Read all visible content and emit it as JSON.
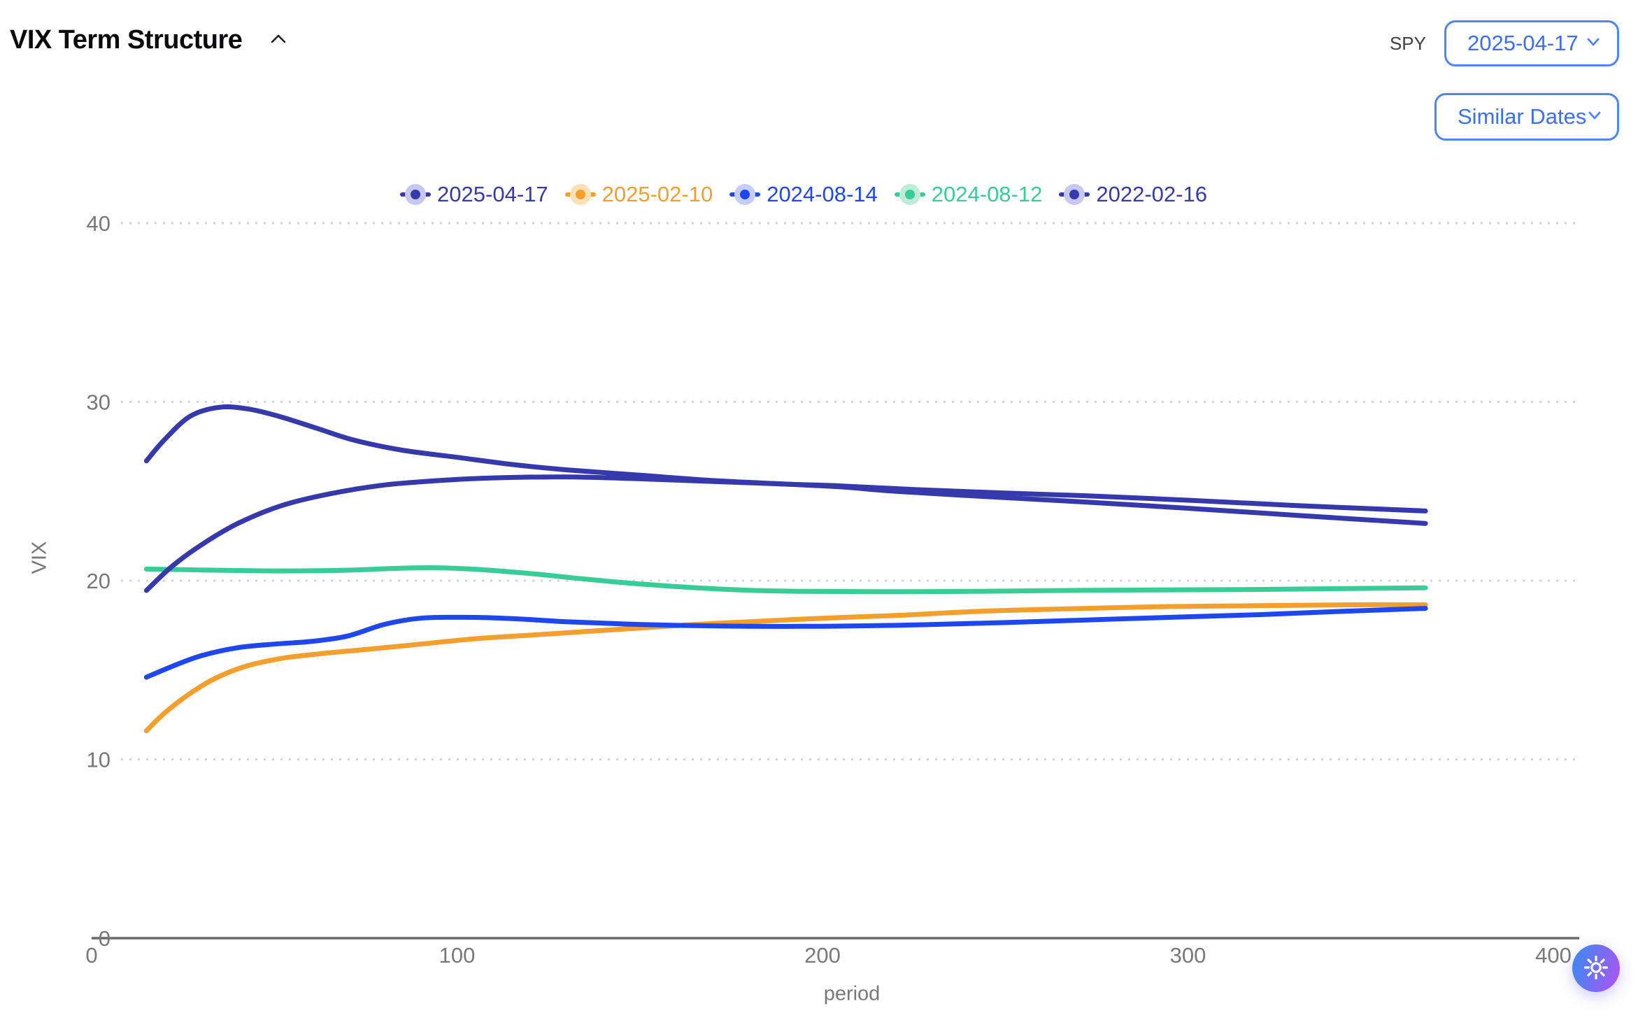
{
  "header": {
    "title": "VIX Term Structure",
    "symbol_label": "SPY",
    "date_select": {
      "value": "2025-04-17"
    },
    "similar_dates_button": {
      "label": "Similar Dates"
    }
  },
  "colors": {
    "navy": "#3639ab",
    "orange": "#f49e2c",
    "blue": "#1e47ee",
    "green": "#38cd96",
    "navy_halo": "#c6c8f0",
    "orange_halo": "#fbe2b6",
    "blue_halo": "#c5cdfb",
    "green_halo": "#c0ebd8",
    "grid": "#d3d3d3",
    "axis": "#6a6a6a",
    "tick_text": "#787878",
    "dropdown_border": "#4c86f4",
    "dropdown_text": "#3a6ff2",
    "fab_gradient_start": "#4187f2",
    "fab_gradient_end": "#a557f3"
  },
  "chart_data": {
    "type": "line",
    "title": "",
    "xlabel": "period",
    "ylabel": "VIX",
    "xlim": [
      0,
      400
    ],
    "ylim": [
      0,
      40
    ],
    "x_ticks": [
      0,
      100,
      200,
      300,
      400
    ],
    "y_ticks": [
      0,
      10,
      20,
      30,
      40
    ],
    "grid": "horizontal-dotted",
    "legend_position": "top-center",
    "series": [
      {
        "name": "2025-04-17",
        "color_key": "navy",
        "points": [
          [
            15,
            26.7
          ],
          [
            20,
            27.9
          ],
          [
            27,
            29.2
          ],
          [
            35,
            29.7
          ],
          [
            43,
            29.6
          ],
          [
            52,
            29.15
          ],
          [
            62,
            28.5
          ],
          [
            72,
            27.85
          ],
          [
            85,
            27.3
          ],
          [
            100,
            26.9
          ],
          [
            115,
            26.5
          ],
          [
            130,
            26.2
          ],
          [
            150,
            25.9
          ],
          [
            170,
            25.6
          ],
          [
            190,
            25.4
          ],
          [
            205,
            25.25
          ],
          [
            220,
            25.0
          ],
          [
            245,
            24.7
          ],
          [
            272,
            24.4
          ],
          [
            300,
            24.05
          ],
          [
            330,
            23.65
          ],
          [
            365,
            23.2
          ]
        ]
      },
      {
        "name": "2025-02-10",
        "color_key": "orange",
        "points": [
          [
            15,
            11.6
          ],
          [
            20,
            12.6
          ],
          [
            27,
            13.7
          ],
          [
            34,
            14.55
          ],
          [
            42,
            15.2
          ],
          [
            52,
            15.65
          ],
          [
            62,
            15.9
          ],
          [
            75,
            16.15
          ],
          [
            90,
            16.45
          ],
          [
            105,
            16.75
          ],
          [
            120,
            16.95
          ],
          [
            135,
            17.15
          ],
          [
            150,
            17.35
          ],
          [
            165,
            17.55
          ],
          [
            180,
            17.7
          ],
          [
            200,
            17.9
          ],
          [
            220,
            18.05
          ],
          [
            245,
            18.3
          ],
          [
            272,
            18.45
          ],
          [
            295,
            18.55
          ],
          [
            320,
            18.6
          ],
          [
            345,
            18.65
          ],
          [
            365,
            18.65
          ]
        ]
      },
      {
        "name": "2024-08-14",
        "color_key": "blue",
        "points": [
          [
            15,
            14.6
          ],
          [
            22,
            15.2
          ],
          [
            30,
            15.8
          ],
          [
            40,
            16.25
          ],
          [
            50,
            16.45
          ],
          [
            60,
            16.6
          ],
          [
            70,
            16.9
          ],
          [
            80,
            17.55
          ],
          [
            90,
            17.9
          ],
          [
            102,
            17.95
          ],
          [
            115,
            17.88
          ],
          [
            130,
            17.7
          ],
          [
            145,
            17.58
          ],
          [
            160,
            17.5
          ],
          [
            180,
            17.45
          ],
          [
            200,
            17.45
          ],
          [
            220,
            17.5
          ],
          [
            240,
            17.6
          ],
          [
            260,
            17.72
          ],
          [
            280,
            17.85
          ],
          [
            300,
            17.98
          ],
          [
            320,
            18.1
          ],
          [
            342,
            18.28
          ],
          [
            365,
            18.45
          ]
        ]
      },
      {
        "name": "2024-08-12",
        "color_key": "green",
        "points": [
          [
            15,
            20.65
          ],
          [
            30,
            20.6
          ],
          [
            45,
            20.55
          ],
          [
            60,
            20.55
          ],
          [
            72,
            20.6
          ],
          [
            85,
            20.7
          ],
          [
            95,
            20.72
          ],
          [
            108,
            20.6
          ],
          [
            120,
            20.4
          ],
          [
            132,
            20.15
          ],
          [
            145,
            19.9
          ],
          [
            158,
            19.7
          ],
          [
            170,
            19.55
          ],
          [
            182,
            19.45
          ],
          [
            195,
            19.4
          ],
          [
            215,
            19.38
          ],
          [
            240,
            19.4
          ],
          [
            265,
            19.45
          ],
          [
            290,
            19.48
          ],
          [
            315,
            19.5
          ],
          [
            340,
            19.55
          ],
          [
            365,
            19.6
          ]
        ]
      },
      {
        "name": "2022-02-16",
        "color_key": "navy",
        "points": [
          [
            15,
            19.45
          ],
          [
            22,
            20.8
          ],
          [
            30,
            22.0
          ],
          [
            40,
            23.2
          ],
          [
            52,
            24.2
          ],
          [
            65,
            24.85
          ],
          [
            80,
            25.35
          ],
          [
            95,
            25.6
          ],
          [
            110,
            25.75
          ],
          [
            130,
            25.8
          ],
          [
            150,
            25.7
          ],
          [
            170,
            25.55
          ],
          [
            190,
            25.4
          ],
          [
            205,
            25.3
          ],
          [
            225,
            25.1
          ],
          [
            250,
            24.9
          ],
          [
            272,
            24.75
          ],
          [
            300,
            24.5
          ],
          [
            330,
            24.2
          ],
          [
            365,
            23.9
          ]
        ]
      }
    ]
  },
  "fab": {
    "icon": "sun"
  }
}
